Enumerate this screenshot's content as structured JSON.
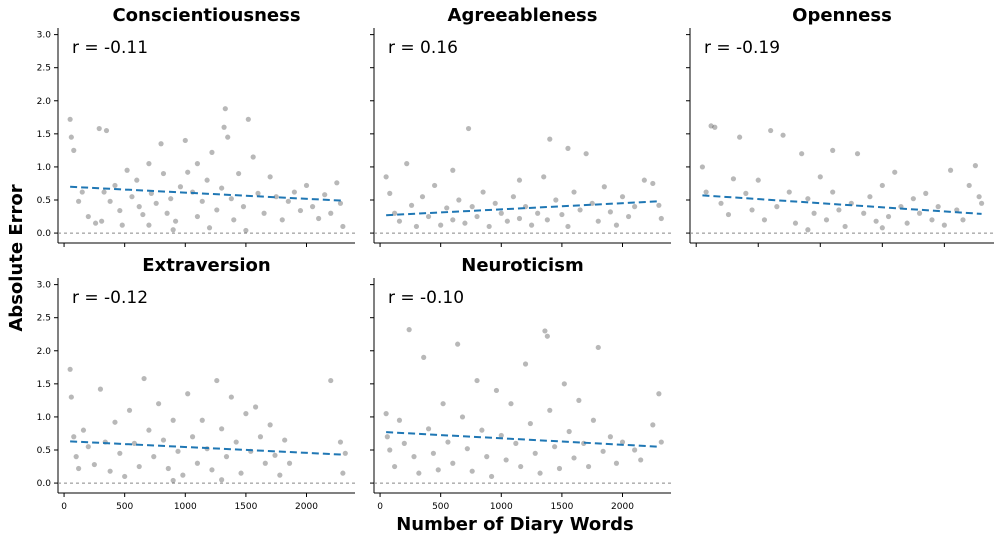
{
  "figure": {
    "xlabel": "Number of Diary Words",
    "ylabel": "Absolute Error"
  },
  "chart_data": [
    {
      "type": "scatter",
      "title": "Conscientiousness",
      "annotation": "r = -0.11",
      "xlim": [
        -50,
        2400
      ],
      "ylim": [
        -0.15,
        3.1
      ],
      "x_ticks": [],
      "y_ticks": [
        "0.0",
        "0.5",
        "1.0",
        "1.5",
        "2.0",
        "2.5",
        "3.0"
      ],
      "trend": {
        "x": [
          50,
          2300
        ],
        "y": [
          0.7,
          0.49
        ]
      },
      "reference_line_y": 0,
      "point_color": "#000000",
      "trend_color": "#1f77b4",
      "points": [
        [
          50,
          1.72
        ],
        [
          60,
          1.45
        ],
        [
          80,
          1.25
        ],
        [
          120,
          0.48
        ],
        [
          150,
          0.62
        ],
        [
          200,
          0.25
        ],
        [
          260,
          0.15
        ],
        [
          290,
          1.58
        ],
        [
          310,
          0.18
        ],
        [
          330,
          0.62
        ],
        [
          350,
          1.55
        ],
        [
          380,
          0.48
        ],
        [
          420,
          0.72
        ],
        [
          460,
          0.34
        ],
        [
          480,
          0.12
        ],
        [
          520,
          0.95
        ],
        [
          560,
          0.55
        ],
        [
          600,
          0.8
        ],
        [
          620,
          0.4
        ],
        [
          650,
          0.28
        ],
        [
          700,
          1.05
        ],
        [
          720,
          0.6
        ],
        [
          760,
          0.45
        ],
        [
          800,
          1.35
        ],
        [
          820,
          0.9
        ],
        [
          850,
          0.3
        ],
        [
          880,
          0.52
        ],
        [
          920,
          0.18
        ],
        [
          960,
          0.7
        ],
        [
          1000,
          1.4
        ],
        [
          1020,
          0.92
        ],
        [
          1060,
          0.62
        ],
        [
          1100,
          0.25
        ],
        [
          1140,
          0.48
        ],
        [
          1180,
          0.8
        ],
        [
          1220,
          1.22
        ],
        [
          1260,
          0.35
        ],
        [
          1300,
          0.68
        ],
        [
          1320,
          1.6
        ],
        [
          1350,
          1.45
        ],
        [
          1380,
          0.52
        ],
        [
          1400,
          0.2
        ],
        [
          1440,
          0.9
        ],
        [
          1480,
          0.4
        ],
        [
          1520,
          1.72
        ],
        [
          1560,
          1.15
        ],
        [
          1600,
          0.6
        ],
        [
          1650,
          0.3
        ],
        [
          1700,
          0.85
        ],
        [
          1750,
          0.55
        ],
        [
          1800,
          0.2
        ],
        [
          1850,
          0.48
        ],
        [
          1900,
          0.62
        ],
        [
          1950,
          0.34
        ],
        [
          2000,
          0.72
        ],
        [
          2050,
          0.4
        ],
        [
          2100,
          0.22
        ],
        [
          2150,
          0.58
        ],
        [
          2200,
          0.3
        ],
        [
          2250,
          0.76
        ],
        [
          2280,
          0.45
        ],
        [
          2300,
          0.1
        ],
        [
          900,
          0.05
        ],
        [
          1200,
          0.08
        ],
        [
          1500,
          0.04
        ],
        [
          700,
          0.12
        ],
        [
          1100,
          1.05
        ],
        [
          1330,
          1.88
        ]
      ]
    },
    {
      "type": "scatter",
      "title": "Agreeableness",
      "annotation": "r = 0.16",
      "xlim": [
        -50,
        2400
      ],
      "ylim": [
        -0.15,
        3.1
      ],
      "x_ticks": [],
      "y_ticks": [],
      "trend": {
        "x": [
          50,
          2300
        ],
        "y": [
          0.27,
          0.48
        ]
      },
      "reference_line_y": 0,
      "point_color": "#000000",
      "trend_color": "#1f77b4",
      "points": [
        [
          50,
          0.85
        ],
        [
          80,
          0.6
        ],
        [
          120,
          0.3
        ],
        [
          160,
          0.18
        ],
        [
          220,
          1.05
        ],
        [
          260,
          0.42
        ],
        [
          300,
          0.1
        ],
        [
          350,
          0.55
        ],
        [
          400,
          0.25
        ],
        [
          450,
          0.72
        ],
        [
          500,
          0.12
        ],
        [
          550,
          0.38
        ],
        [
          600,
          0.2
        ],
        [
          650,
          0.5
        ],
        [
          700,
          0.15
        ],
        [
          730,
          1.58
        ],
        [
          760,
          0.4
        ],
        [
          800,
          0.25
        ],
        [
          850,
          0.62
        ],
        [
          900,
          0.1
        ],
        [
          950,
          0.45
        ],
        [
          1000,
          0.3
        ],
        [
          1050,
          0.18
        ],
        [
          1100,
          0.55
        ],
        [
          1150,
          0.22
        ],
        [
          1200,
          0.4
        ],
        [
          1250,
          0.12
        ],
        [
          1300,
          0.3
        ],
        [
          1350,
          0.85
        ],
        [
          1380,
          0.2
        ],
        [
          1400,
          1.42
        ],
        [
          1450,
          0.5
        ],
        [
          1500,
          0.28
        ],
        [
          1550,
          0.1
        ],
        [
          1600,
          0.62
        ],
        [
          1650,
          0.35
        ],
        [
          1700,
          1.2
        ],
        [
          1750,
          0.45
        ],
        [
          1800,
          0.18
        ],
        [
          1850,
          0.7
        ],
        [
          1900,
          0.32
        ],
        [
          1950,
          0.12
        ],
        [
          2000,
          0.55
        ],
        [
          2050,
          0.25
        ],
        [
          2100,
          0.4
        ],
        [
          2180,
          0.8
        ],
        [
          2250,
          0.75
        ],
        [
          2300,
          0.42
        ],
        [
          2320,
          0.22
        ],
        [
          1150,
          0.8
        ],
        [
          1550,
          1.28
        ],
        [
          600,
          0.95
        ]
      ]
    },
    {
      "type": "scatter",
      "title": "Openness",
      "annotation": "r = -0.19",
      "xlim": [
        -50,
        2400
      ],
      "ylim": [
        -0.15,
        3.1
      ],
      "x_ticks": [],
      "y_ticks": [],
      "trend": {
        "x": [
          50,
          2300
        ],
        "y": [
          0.57,
          0.29
        ]
      },
      "reference_line_y": 0,
      "point_color": "#000000",
      "trend_color": "#1f77b4",
      "points": [
        [
          50,
          1.0
        ],
        [
          80,
          0.62
        ],
        [
          120,
          1.62
        ],
        [
          150,
          1.6
        ],
        [
          200,
          0.45
        ],
        [
          260,
          0.28
        ],
        [
          300,
          0.82
        ],
        [
          350,
          1.45
        ],
        [
          400,
          0.6
        ],
        [
          450,
          0.35
        ],
        [
          500,
          0.8
        ],
        [
          550,
          0.2
        ],
        [
          600,
          1.55
        ],
        [
          650,
          0.4
        ],
        [
          700,
          1.48
        ],
        [
          750,
          0.62
        ],
        [
          800,
          0.15
        ],
        [
          850,
          1.2
        ],
        [
          900,
          0.52
        ],
        [
          950,
          0.3
        ],
        [
          1000,
          0.85
        ],
        [
          1050,
          0.2
        ],
        [
          1100,
          0.62
        ],
        [
          1150,
          0.35
        ],
        [
          1200,
          0.1
        ],
        [
          1250,
          0.45
        ],
        [
          1300,
          1.2
        ],
        [
          1350,
          0.3
        ],
        [
          1400,
          0.55
        ],
        [
          1450,
          0.18
        ],
        [
          1500,
          0.72
        ],
        [
          1550,
          0.25
        ],
        [
          1600,
          0.92
        ],
        [
          1650,
          0.4
        ],
        [
          1700,
          0.15
        ],
        [
          1750,
          0.52
        ],
        [
          1800,
          0.3
        ],
        [
          1850,
          0.6
        ],
        [
          1900,
          0.2
        ],
        [
          1950,
          0.4
        ],
        [
          2000,
          0.12
        ],
        [
          2050,
          0.95
        ],
        [
          2100,
          0.35
        ],
        [
          2150,
          0.2
        ],
        [
          2200,
          0.72
        ],
        [
          2250,
          1.02
        ],
        [
          2280,
          0.55
        ],
        [
          2300,
          0.45
        ],
        [
          1100,
          1.25
        ],
        [
          900,
          0.05
        ],
        [
          1500,
          0.08
        ]
      ]
    },
    {
      "type": "scatter",
      "title": "Extraversion",
      "annotation": "r = -0.12",
      "xlim": [
        -50,
        2400
      ],
      "ylim": [
        -0.15,
        3.1
      ],
      "x_ticks": [
        "0",
        "500",
        "1000",
        "1500",
        "2000"
      ],
      "x_tick_values": [
        0,
        500,
        1000,
        1500,
        2000
      ],
      "y_ticks": [
        "0.0",
        "0.5",
        "1.0",
        "1.5",
        "2.0",
        "2.5",
        "3.0"
      ],
      "trend": {
        "x": [
          50,
          2300
        ],
        "y": [
          0.63,
          0.43
        ]
      },
      "reference_line_y": 0,
      "point_color": "#000000",
      "trend_color": "#1f77b4",
      "points": [
        [
          50,
          1.72
        ],
        [
          60,
          1.3
        ],
        [
          80,
          0.7
        ],
        [
          100,
          0.4
        ],
        [
          120,
          0.22
        ],
        [
          160,
          0.8
        ],
        [
          200,
          0.55
        ],
        [
          250,
          0.28
        ],
        [
          300,
          1.42
        ],
        [
          340,
          0.62
        ],
        [
          380,
          0.18
        ],
        [
          420,
          0.92
        ],
        [
          460,
          0.45
        ],
        [
          500,
          0.1
        ],
        [
          540,
          1.1
        ],
        [
          580,
          0.6
        ],
        [
          620,
          0.25
        ],
        [
          660,
          1.58
        ],
        [
          700,
          0.8
        ],
        [
          740,
          0.4
        ],
        [
          780,
          1.2
        ],
        [
          820,
          0.65
        ],
        [
          860,
          0.22
        ],
        [
          900,
          0.95
        ],
        [
          940,
          0.48
        ],
        [
          980,
          0.12
        ],
        [
          1020,
          1.35
        ],
        [
          1060,
          0.7
        ],
        [
          1100,
          0.3
        ],
        [
          1140,
          0.95
        ],
        [
          1180,
          0.52
        ],
        [
          1220,
          0.2
        ],
        [
          1260,
          1.55
        ],
        [
          1300,
          0.82
        ],
        [
          1340,
          0.4
        ],
        [
          1380,
          1.3
        ],
        [
          1420,
          0.62
        ],
        [
          1460,
          0.15
        ],
        [
          1500,
          1.05
        ],
        [
          1540,
          0.48
        ],
        [
          1580,
          1.15
        ],
        [
          1620,
          0.7
        ],
        [
          1660,
          0.3
        ],
        [
          1700,
          0.88
        ],
        [
          1740,
          0.42
        ],
        [
          1780,
          0.12
        ],
        [
          1820,
          0.65
        ],
        [
          1860,
          0.3
        ],
        [
          2200,
          1.55
        ],
        [
          2280,
          0.62
        ],
        [
          2300,
          0.15
        ],
        [
          2320,
          0.45
        ],
        [
          1300,
          0.05
        ],
        [
          900,
          0.04
        ]
      ]
    },
    {
      "type": "scatter",
      "title": "Neuroticism",
      "annotation": "r = -0.10",
      "xlim": [
        -50,
        2400
      ],
      "ylim": [
        -0.15,
        3.1
      ],
      "x_ticks": [
        "0",
        "500",
        "1000",
        "1500",
        "2000"
      ],
      "x_tick_values": [
        0,
        500,
        1000,
        1500,
        2000
      ],
      "y_ticks": [],
      "trend": {
        "x": [
          50,
          2300
        ],
        "y": [
          0.77,
          0.55
        ]
      },
      "reference_line_y": 0,
      "point_color": "#000000",
      "trend_color": "#1f77b4",
      "points": [
        [
          50,
          1.05
        ],
        [
          60,
          0.7
        ],
        [
          80,
          0.5
        ],
        [
          120,
          0.25
        ],
        [
          160,
          0.95
        ],
        [
          200,
          0.6
        ],
        [
          240,
          2.32
        ],
        [
          280,
          0.4
        ],
        [
          320,
          0.15
        ],
        [
          360,
          1.9
        ],
        [
          400,
          0.82
        ],
        [
          440,
          0.45
        ],
        [
          480,
          0.2
        ],
        [
          520,
          1.2
        ],
        [
          560,
          0.62
        ],
        [
          600,
          0.3
        ],
        [
          640,
          2.1
        ],
        [
          680,
          1.0
        ],
        [
          720,
          0.52
        ],
        [
          760,
          0.18
        ],
        [
          800,
          1.55
        ],
        [
          840,
          0.8
        ],
        [
          880,
          0.4
        ],
        [
          920,
          0.1
        ],
        [
          960,
          1.4
        ],
        [
          1000,
          0.72
        ],
        [
          1040,
          0.35
        ],
        [
          1080,
          1.2
        ],
        [
          1120,
          0.6
        ],
        [
          1160,
          0.25
        ],
        [
          1200,
          1.8
        ],
        [
          1240,
          0.9
        ],
        [
          1280,
          0.45
        ],
        [
          1320,
          0.15
        ],
        [
          1360,
          2.3
        ],
        [
          1380,
          2.22
        ],
        [
          1400,
          1.1
        ],
        [
          1440,
          0.55
        ],
        [
          1480,
          0.22
        ],
        [
          1520,
          1.5
        ],
        [
          1560,
          0.78
        ],
        [
          1600,
          0.38
        ],
        [
          1640,
          1.25
        ],
        [
          1680,
          0.6
        ],
        [
          1720,
          0.25
        ],
        [
          1760,
          0.95
        ],
        [
          1800,
          2.05
        ],
        [
          1840,
          0.48
        ],
        [
          1900,
          0.7
        ],
        [
          1950,
          0.3
        ],
        [
          2000,
          0.62
        ],
        [
          2100,
          0.5
        ],
        [
          2150,
          0.35
        ],
        [
          2250,
          0.88
        ],
        [
          2300,
          1.35
        ],
        [
          2320,
          0.62
        ]
      ]
    }
  ]
}
